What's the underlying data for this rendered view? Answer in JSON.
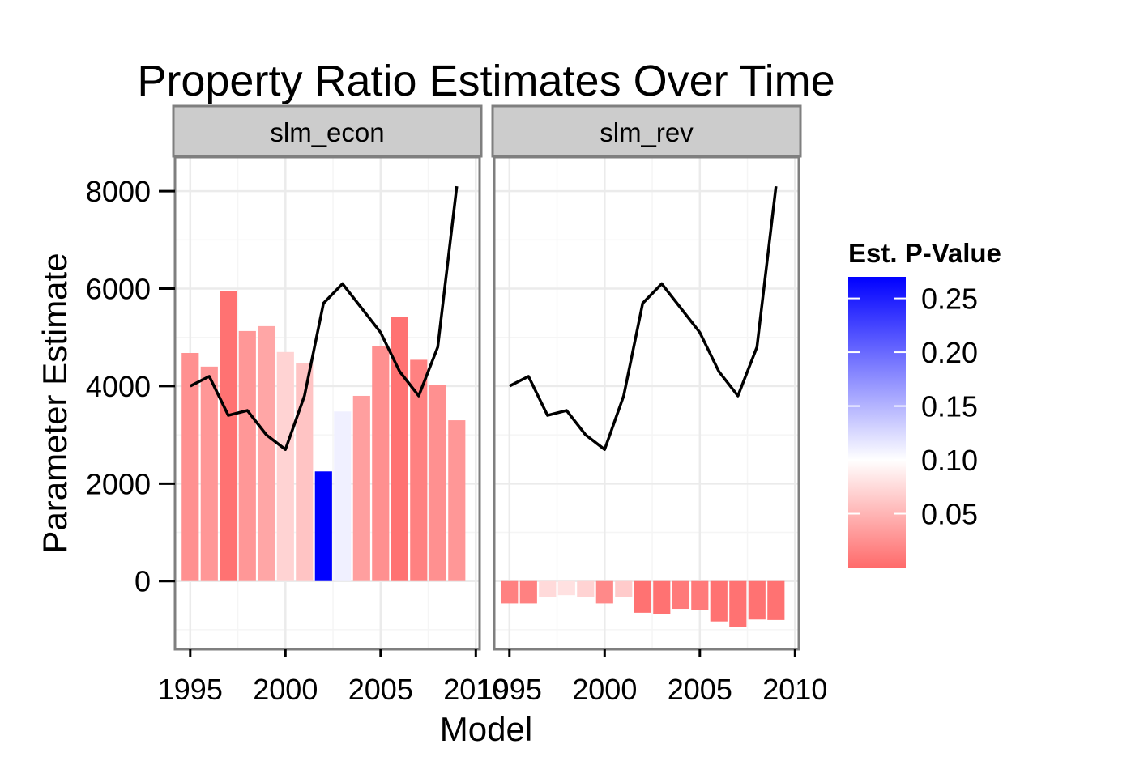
{
  "chart_data": {
    "type": "bar",
    "title": "Property Ratio Estimates Over Time",
    "xlabel": "Model",
    "ylabel": "Parameter Estimate",
    "xlim": [
      1994.2,
      2010.2
    ],
    "ylim": [
      -1400,
      8700
    ],
    "x_ticks": [
      1995,
      2000,
      2005,
      2010
    ],
    "y_ticks": [
      0,
      2000,
      4000,
      6000,
      8000
    ],
    "x_tick_labels": [
      "1995",
      "2000",
      "2005",
      "2010"
    ],
    "y_tick_labels": [
      "0",
      "2000",
      "4000",
      "6000",
      "8000"
    ],
    "grid": true,
    "legend": {
      "title": "Est. P-Value",
      "placement": "right",
      "range": [
        0.0,
        0.27
      ],
      "ticks": [
        0.05,
        0.1,
        0.15,
        0.2,
        0.25
      ],
      "tick_labels": [
        "0.05",
        "0.10",
        "0.15",
        "0.20",
        "0.25"
      ],
      "low_color": "#ff6b6b",
      "mid_color": "#ffffff",
      "high_color": "#0000ff",
      "midpoint": 0.1
    },
    "line_color": "#000000",
    "panels": [
      {
        "name": "slm_econ",
        "years": [
          1995,
          1996,
          1997,
          1998,
          1999,
          2000,
          2001,
          2002,
          2003,
          2004,
          2005,
          2006,
          2007,
          2008,
          2009
        ],
        "bar_values": [
          4680,
          4400,
          5950,
          5130,
          5230,
          4700,
          4480,
          2250,
          3480,
          3800,
          4820,
          5420,
          4540,
          4030,
          3300
        ],
        "p_values": [
          0.025,
          0.03,
          0.005,
          0.03,
          0.04,
          0.07,
          0.06,
          0.27,
          0.11,
          0.035,
          0.025,
          0.005,
          0.015,
          0.025,
          0.03
        ],
        "line_values": [
          4000,
          4200,
          3400,
          3500,
          3000,
          2700,
          3800,
          5700,
          6100,
          5600,
          5100,
          4300,
          3800,
          4800,
          8100
        ]
      },
      {
        "name": "slm_rev",
        "years": [
          1995,
          1996,
          1997,
          1998,
          1999,
          2000,
          2001,
          2002,
          2003,
          2004,
          2005,
          2006,
          2007,
          2008,
          2009
        ],
        "bar_values": [
          -460,
          -460,
          -320,
          -290,
          -330,
          -460,
          -330,
          -650,
          -680,
          -570,
          -590,
          -830,
          -940,
          -790,
          -800
        ],
        "p_values": [
          0.015,
          0.015,
          0.075,
          0.08,
          0.07,
          0.02,
          0.065,
          0.005,
          0.005,
          0.01,
          0.01,
          0.005,
          0.005,
          0.005,
          0.005
        ],
        "line_values": [
          4000,
          4200,
          3400,
          3500,
          3000,
          2700,
          3800,
          5700,
          6100,
          5600,
          5100,
          4300,
          3800,
          4800,
          8100
        ]
      }
    ]
  }
}
